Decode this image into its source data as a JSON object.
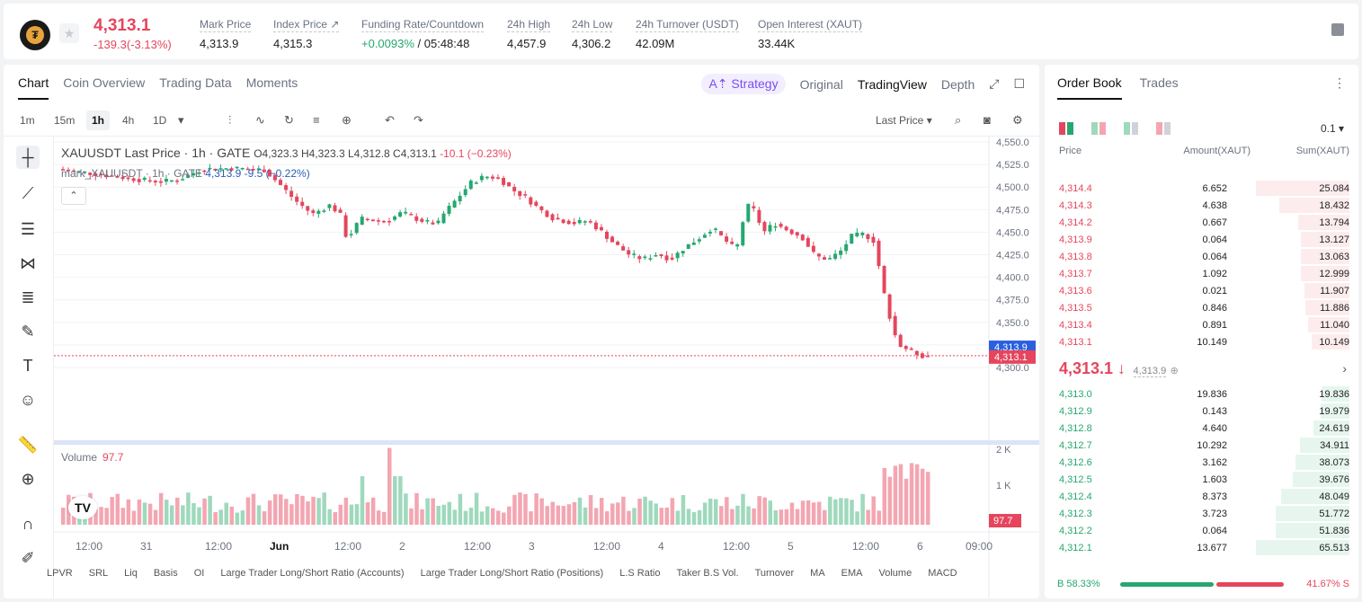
{
  "ticker": {
    "logo_glyph": "₮",
    "price": "4,313.1",
    "change": "-139.3(-3.13%)",
    "stats": [
      {
        "label": "Mark Price",
        "value": "4,313.9"
      },
      {
        "label": "Index Price ↗",
        "value": "4,315.3"
      },
      {
        "label": "Funding Rate/Countdown",
        "value_green": "+0.0093%",
        "value": " / 05:48:48"
      },
      {
        "label": "24h High",
        "value": "4,457.9"
      },
      {
        "label": "24h Low",
        "value": "4,306.2"
      },
      {
        "label": "24h Turnover (USDT)",
        "value": "42.09M"
      },
      {
        "label": "Open Interest (XAUT)",
        "value": "33.44K"
      }
    ]
  },
  "chart_tabs": [
    "Chart",
    "Coin Overview",
    "Trading Data",
    "Moments"
  ],
  "chart_views": {
    "strategy": "A⇡ Strategy",
    "original": "Original",
    "tradingview": "TradingView",
    "depth": "Depth"
  },
  "timeframes": [
    "1m",
    "15m",
    "1h",
    "4h",
    "1D"
  ],
  "active_timeframe": "1h",
  "price_type": "Last Price",
  "legend": {
    "title": "XAUUSDT Last Price · 1h · GATE",
    "o": "O4,323.3",
    "h": "H4,323.3",
    "l": "L4,312.8",
    "c": "C4,313.1",
    "chg": "-10.1 (−0.23%)",
    "mark_prefix": "mark_XAUUSDT · 1h · GATE",
    "mark_val": "4,313.9",
    "mark_chg": "-9.5 (−0.22%)"
  },
  "volume_legend": {
    "label": "Volume",
    "value": "97.7"
  },
  "price_axis": [
    "4,550.0",
    "4,525.0",
    "4,500.0",
    "4,475.0",
    "4,450.0",
    "4,425.0",
    "4,400.0",
    "4,375.0",
    "4,350.0",
    "4,325.0",
    "4,300.0"
  ],
  "price_tags": {
    "mark": "4,313.9",
    "last": "4,313.1"
  },
  "volume_axis": [
    "2 K",
    "1 K"
  ],
  "volume_tag": "97.7",
  "time_axis": [
    "12:00",
    "31",
    "12:00",
    "Jun",
    "12:00",
    "2",
    "12:00",
    "3",
    "12:00",
    "4",
    "12:00",
    "5",
    "12:00",
    "6",
    "09:00"
  ],
  "indicators": [
    "LPVR",
    "SRL",
    "Liq",
    "Basis",
    "OI",
    "Large Trader Long/Short Ratio (Accounts)",
    "Large Trader Long/Short Ratio (Positions)",
    "L.S Ratio",
    "Taker B.S Vol.",
    "Turnover",
    "MA",
    "EMA",
    "Volume",
    "MACD"
  ],
  "orderbook": {
    "tabs": [
      "Order Book",
      "Trades"
    ],
    "precision": "0.1 ▾",
    "headers": {
      "price": "Price",
      "amount": "Amount(XAUT)",
      "sum": "Sum(XAUT)"
    },
    "asks": [
      {
        "price": "4,314.4",
        "amount": "6.652",
        "sum": "25.084",
        "depth": 1.0
      },
      {
        "price": "4,314.3",
        "amount": "4.638",
        "sum": "18.432",
        "depth": 0.75
      },
      {
        "price": "4,314.2",
        "amount": "0.667",
        "sum": "13.794",
        "depth": 0.55
      },
      {
        "price": "4,313.9",
        "amount": "0.064",
        "sum": "13.127",
        "depth": 0.52
      },
      {
        "price": "4,313.8",
        "amount": "0.064",
        "sum": "13.063",
        "depth": 0.52
      },
      {
        "price": "4,313.7",
        "amount": "1.092",
        "sum": "12.999",
        "depth": 0.52
      },
      {
        "price": "4,313.6",
        "amount": "0.021",
        "sum": "11.907",
        "depth": 0.48
      },
      {
        "price": "4,313.5",
        "amount": "0.846",
        "sum": "11.886",
        "depth": 0.47
      },
      {
        "price": "4,313.4",
        "amount": "0.891",
        "sum": "11.040",
        "depth": 0.44
      },
      {
        "price": "4,313.1",
        "amount": "10.149",
        "sum": "10.149",
        "depth": 0.4
      }
    ],
    "mid_price": "4,313.1 ↓",
    "mid_mark": "4,313.9",
    "bids": [
      {
        "price": "4,313.0",
        "amount": "19.836",
        "sum": "19.836",
        "depth": 0.3
      },
      {
        "price": "4,312.9",
        "amount": "0.143",
        "sum": "19.979",
        "depth": 0.31
      },
      {
        "price": "4,312.8",
        "amount": "4.640",
        "sum": "24.619",
        "depth": 0.38
      },
      {
        "price": "4,312.7",
        "amount": "10.292",
        "sum": "34.911",
        "depth": 0.53
      },
      {
        "price": "4,312.6",
        "amount": "3.162",
        "sum": "38.073",
        "depth": 0.58
      },
      {
        "price": "4,312.5",
        "amount": "1.603",
        "sum": "39.676",
        "depth": 0.61
      },
      {
        "price": "4,312.4",
        "amount": "8.373",
        "sum": "48.049",
        "depth": 0.73
      },
      {
        "price": "4,312.3",
        "amount": "3.723",
        "sum": "51.772",
        "depth": 0.79
      },
      {
        "price": "4,312.2",
        "amount": "0.064",
        "sum": "51.836",
        "depth": 0.79
      },
      {
        "price": "4,312.1",
        "amount": "13.677",
        "sum": "65.513",
        "depth": 1.0
      }
    ],
    "buy_ratio": "B 58.33%",
    "sell_ratio": "41.67% S",
    "buy_fraction": 0.5833
  },
  "colors": {
    "up": "#26a770",
    "down": "#e5465d",
    "accent": "#7a4df2"
  }
}
